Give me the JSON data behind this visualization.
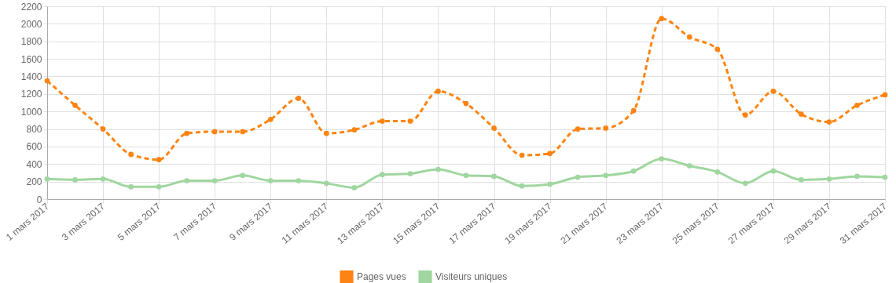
{
  "chart_data": {
    "type": "line",
    "x": [
      "2017-03-01",
      "2017-03-02",
      "2017-03-03",
      "2017-03-04",
      "2017-03-05",
      "2017-03-06",
      "2017-03-07",
      "2017-03-08",
      "2017-03-09",
      "2017-03-10",
      "2017-03-11",
      "2017-03-12",
      "2017-03-13",
      "2017-03-14",
      "2017-03-15",
      "2017-03-16",
      "2017-03-17",
      "2017-03-18",
      "2017-03-19",
      "2017-03-20",
      "2017-03-21",
      "2017-03-22",
      "2017-03-23",
      "2017-03-24",
      "2017-03-25",
      "2017-03-26",
      "2017-03-27",
      "2017-03-28",
      "2017-03-29",
      "2017-03-30",
      "2017-03-31"
    ],
    "series": [
      {
        "name": "Pages vues",
        "color": "#fd8412",
        "line_style": "dashed",
        "values": [
          1350,
          1070,
          800,
          510,
          450,
          750,
          770,
          770,
          910,
          1150,
          750,
          790,
          890,
          890,
          1230,
          1090,
          810,
          500,
          520,
          800,
          810,
          1010,
          2060,
          1850,
          1710,
          960,
          1230,
          970,
          880,
          1070,
          1190
        ]
      },
      {
        "name": "Visiteurs uniques",
        "color": "#a0d6a0",
        "line_style": "solid",
        "values": [
          230,
          220,
          230,
          140,
          140,
          210,
          210,
          270,
          210,
          210,
          180,
          130,
          280,
          290,
          340,
          270,
          260,
          150,
          170,
          250,
          270,
          320,
          460,
          380,
          310,
          180,
          320,
          220,
          230,
          260,
          250
        ]
      }
    ],
    "xlim": [
      "2017-03-01",
      "2017-03-31"
    ],
    "xticks": [
      {
        "value": "2017-03-01",
        "label": "1 mars 2017"
      },
      {
        "value": "2017-03-03",
        "label": "3 mars 2017"
      },
      {
        "value": "2017-03-05",
        "label": "5 mars 2017"
      },
      {
        "value": "2017-03-07",
        "label": "7 mars 2017"
      },
      {
        "value": "2017-03-09",
        "label": "9 mars 2017"
      },
      {
        "value": "2017-03-11",
        "label": "11 mars 2017"
      },
      {
        "value": "2017-03-13",
        "label": "13 mars 2017"
      },
      {
        "value": "2017-03-15",
        "label": "15 mars 2017"
      },
      {
        "value": "2017-03-17",
        "label": "17 mars 2017"
      },
      {
        "value": "2017-03-19",
        "label": "19 mars 2017"
      },
      {
        "value": "2017-03-21",
        "label": "21 mars 2017"
      },
      {
        "value": "2017-03-23",
        "label": "23 mars 2017"
      },
      {
        "value": "2017-03-25",
        "label": "25 mars 2017"
      },
      {
        "value": "2017-03-27",
        "label": "27 mars 2017"
      },
      {
        "value": "2017-03-29",
        "label": "29 mars 2017"
      },
      {
        "value": "2017-03-31",
        "label": "31 mars 2017"
      }
    ],
    "ylim": [
      0,
      2200
    ],
    "yticks": [
      0,
      200,
      400,
      600,
      800,
      1000,
      1200,
      1400,
      1600,
      1800,
      2000,
      2200
    ],
    "grid": true,
    "legend": "bottom",
    "marker": "circle"
  }
}
